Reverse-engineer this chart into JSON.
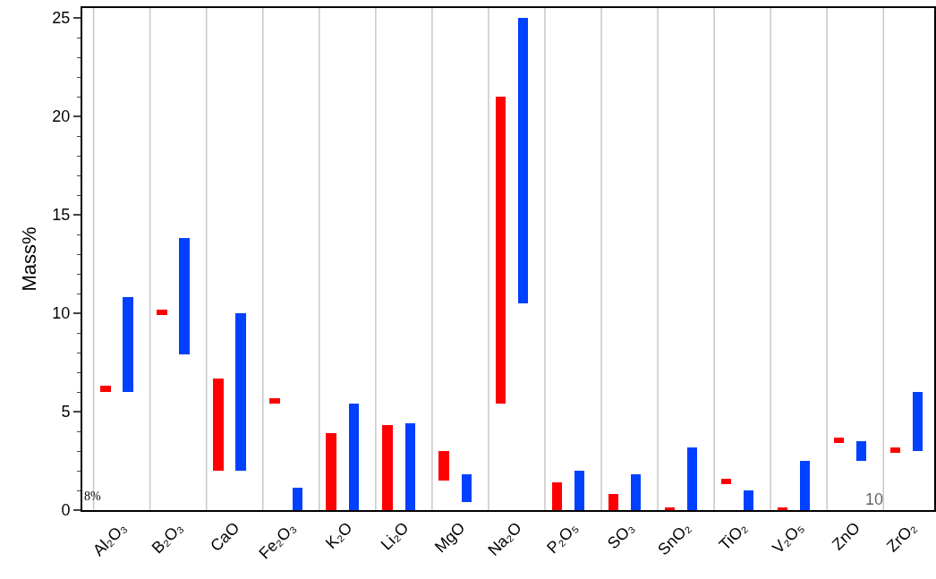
{
  "chart_data": {
    "type": "bar",
    "ylabel": "Mass%",
    "categories": [
      "Al₂O₃",
      "B₂O₃",
      "CaO",
      "Fe₂O₃",
      "K₂O",
      "Li₂O",
      "MgO",
      "Na₂O",
      "P₂O₅",
      "SO₃",
      "SnO₂",
      "TiO₂",
      "V₂O₅",
      "ZnO",
      "ZrO₂"
    ],
    "series": [
      {
        "color": "#ff0000",
        "base": [
          6.0,
          9.9,
          2.0,
          5.4,
          0,
          0,
          1.5,
          5.4,
          0,
          0,
          0,
          1.3,
          0,
          3.4,
          2.9
        ],
        "values": [
          0.3,
          0.3,
          4.7,
          0.3,
          3.9,
          4.3,
          1.5,
          15.6,
          1.4,
          0.8,
          0.15,
          0.3,
          0.15,
          0.3,
          0.3
        ]
      },
      {
        "color": "#0040ff",
        "base": [
          6.0,
          7.9,
          2.0,
          0,
          0,
          0,
          0.4,
          10.5,
          0,
          0,
          0,
          0,
          0,
          2.5,
          3.0
        ],
        "values": [
          4.8,
          5.9,
          8.0,
          1.15,
          5.4,
          4.4,
          1.4,
          14.5,
          2.0,
          1.8,
          3.2,
          1.0,
          2.5,
          1.0,
          3.0
        ]
      }
    ],
    "ylim": [
      0,
      25.5
    ],
    "yticks": [
      0,
      5,
      10,
      15,
      20,
      25
    ],
    "grid": "x",
    "annotations": [
      "8%",
      "10"
    ]
  }
}
